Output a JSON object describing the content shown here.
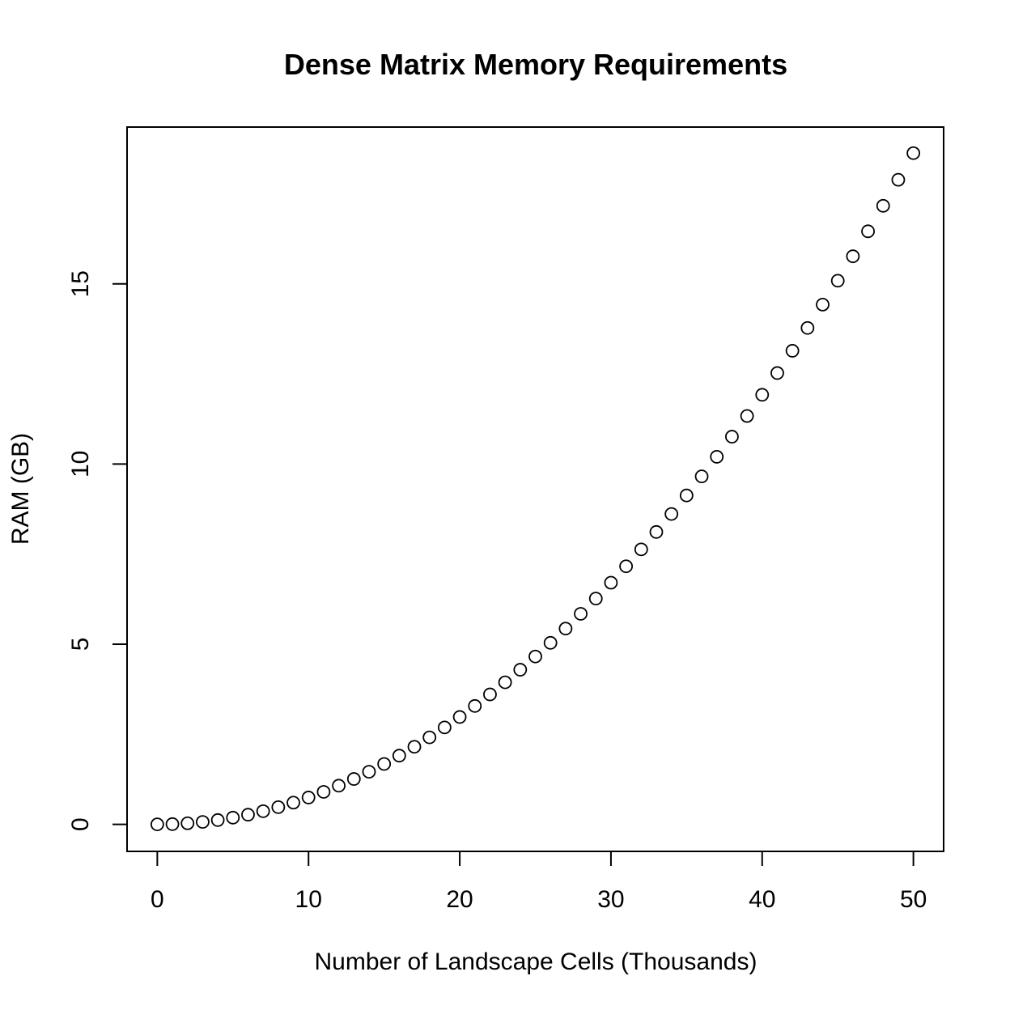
{
  "chart_data": {
    "type": "scatter",
    "title": "Dense Matrix Memory Requirements",
    "xlabel": "Number of Landscape Cells (Thousands)",
    "ylabel": "RAM (GB)",
    "xlim": [
      -2,
      52
    ],
    "ylim": [
      -0.75,
      19.35
    ],
    "xticks": [
      "0",
      "10",
      "20",
      "30",
      "40",
      "50"
    ],
    "yticks": [
      "0",
      "5",
      "10",
      "15"
    ],
    "grid": false,
    "legend": "none",
    "marker": "open-circle",
    "point_color": "#000000",
    "series": [
      {
        "x": [
          0,
          1,
          2,
          3,
          4,
          5,
          6,
          7,
          8,
          9,
          10,
          11,
          12,
          13,
          14,
          15,
          16,
          17,
          18,
          19,
          20,
          21,
          22,
          23,
          24,
          25,
          26,
          27,
          28,
          29,
          30,
          31,
          32,
          33,
          34,
          35,
          36,
          37,
          38,
          39,
          40,
          41,
          42,
          43,
          44,
          45,
          46,
          47,
          48,
          49,
          50
        ],
        "y": [
          0,
          0.007,
          0.03,
          0.067,
          0.119,
          0.186,
          0.268,
          0.365,
          0.477,
          0.603,
          0.745,
          0.901,
          1.073,
          1.259,
          1.46,
          1.676,
          1.907,
          2.153,
          2.414,
          2.689,
          2.98,
          3.285,
          3.605,
          3.941,
          4.291,
          4.657,
          5.037,
          5.432,
          5.842,
          6.266,
          6.706,
          7.161,
          7.63,
          8.114,
          8.613,
          9.127,
          9.656,
          10.2,
          10.758,
          11.332,
          11.921,
          12.524,
          13.142,
          13.775,
          14.423,
          15.086,
          15.764,
          16.457,
          17.165,
          17.887,
          18.626
        ]
      }
    ]
  }
}
